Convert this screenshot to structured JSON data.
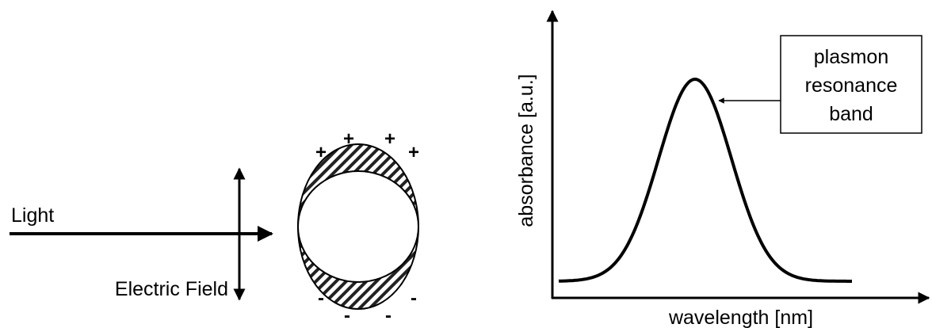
{
  "left": {
    "light_label": "Light",
    "field_label": "Electric Field",
    "plus_charges": [
      "+",
      "+",
      "+",
      "+"
    ],
    "minus_charges": [
      "-",
      "-",
      "-",
      "-"
    ]
  },
  "right": {
    "x_axis_label": "wavelength [nm]",
    "y_axis_label": "absorbance [a.u.]",
    "annotation": [
      "plasmon",
      "resonance",
      "band"
    ]
  }
}
